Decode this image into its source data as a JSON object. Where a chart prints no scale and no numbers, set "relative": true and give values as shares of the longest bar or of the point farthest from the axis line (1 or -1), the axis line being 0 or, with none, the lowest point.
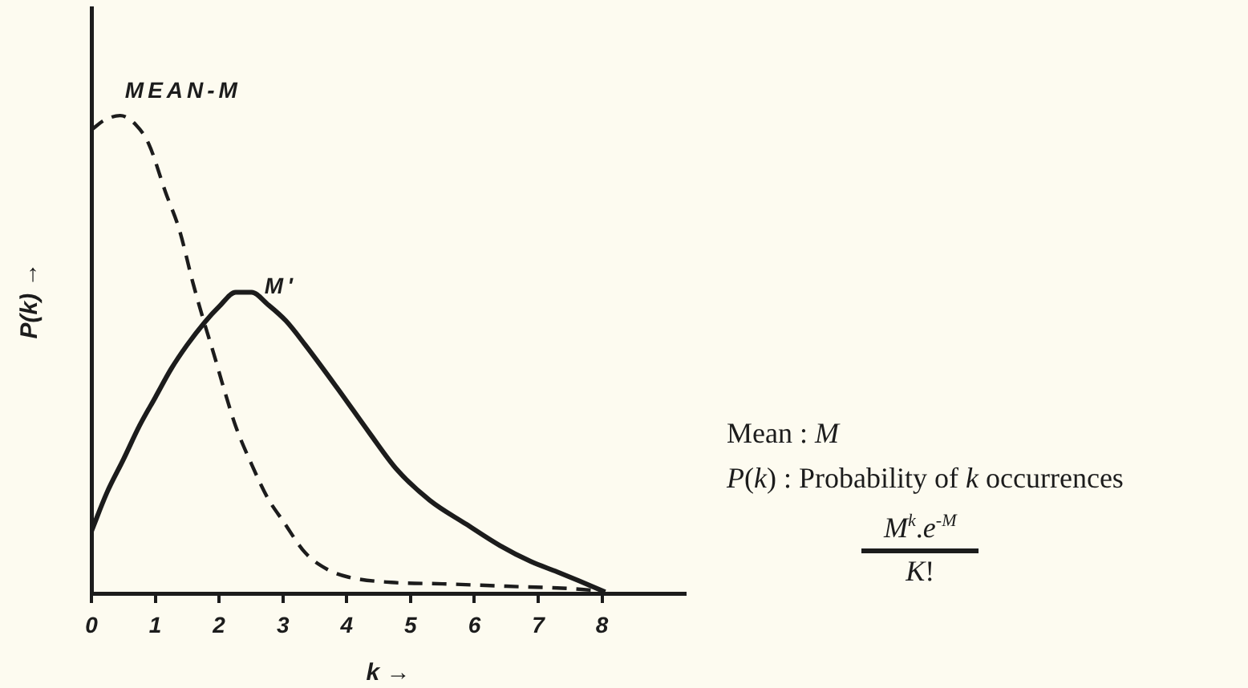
{
  "chart_data": {
    "type": "line",
    "xlabel": "k →",
    "ylabel": "P(k) →",
    "relative": true,
    "xlim": [
      0,
      9.3
    ],
    "xticks": [
      0,
      1,
      2,
      3,
      4,
      5,
      6,
      7,
      8
    ],
    "series": [
      {
        "name": "MEAN-M",
        "color": "#1c1c1c",
        "line_style": "dashed",
        "x": [
          0,
          0.2,
          0.45,
          0.7,
          0.9,
          1.16,
          1.38,
          1.59,
          1.76,
          1.92,
          2.05,
          2.26,
          2.51,
          2.76,
          3.01,
          3.35,
          3.7,
          4.03,
          4.7,
          5.5,
          6.5,
          7.5,
          8
        ],
        "values": [
          0.97,
          0.99,
          1,
          0.98,
          0.94,
          0.84,
          0.76,
          0.65,
          0.57,
          0.5,
          0.44,
          0.35,
          0.27,
          0.2,
          0.15,
          0.085,
          0.05,
          0.034,
          0.023,
          0.02,
          0.015,
          0.01,
          0.005
        ]
      },
      {
        "name": "M'",
        "color": "#1c1c1c",
        "line_style": "solid",
        "x": [
          0,
          0.24,
          0.5,
          0.75,
          1.0,
          1.25,
          1.5,
          1.76,
          2.0,
          2.26,
          2.51,
          2.76,
          3.05,
          3.35,
          3.85,
          4.36,
          4.78,
          5.3,
          5.87,
          6.4,
          6.88,
          7.3,
          7.63,
          8.05
        ],
        "values": [
          0.13,
          0.21,
          0.28,
          0.35,
          0.41,
          0.47,
          0.52,
          0.565,
          0.6,
          0.63,
          0.63,
          0.605,
          0.57,
          0.52,
          0.43,
          0.335,
          0.26,
          0.195,
          0.145,
          0.1,
          0.067,
          0.045,
          0.027,
          0.003
        ]
      }
    ],
    "annotations": [
      "Mean : M",
      "P(k) : Probability of k occurrences",
      "M$^{k}$.e$^{-M}$",
      "K!"
    ]
  }
}
